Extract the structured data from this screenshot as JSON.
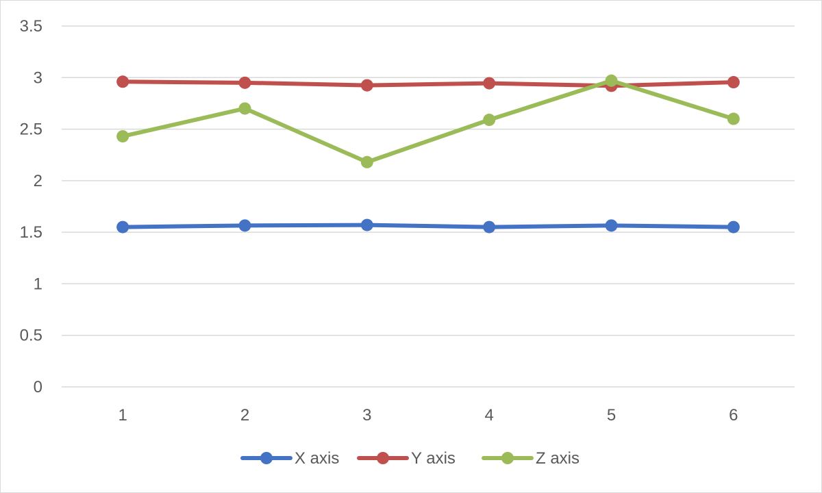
{
  "chart_data": {
    "type": "line",
    "title": "",
    "xlabel": "",
    "ylabel": "",
    "categories": [
      "1",
      "2",
      "3",
      "4",
      "5",
      "6"
    ],
    "ylim": [
      0,
      3.5
    ],
    "yticks": [
      "0",
      "0.5",
      "1",
      "1.5",
      "2",
      "2.5",
      "3",
      "3.5"
    ],
    "grid": "horizontal",
    "legend_position": "bottom",
    "series": [
      {
        "name": "X axis",
        "color": "#4472c4",
        "values": [
          1.55,
          1.565,
          1.57,
          1.55,
          1.565,
          1.55
        ]
      },
      {
        "name": "Y axis",
        "color": "#c0504d",
        "values": [
          2.96,
          2.95,
          2.925,
          2.945,
          2.92,
          2.955
        ]
      },
      {
        "name": "Z axis",
        "color": "#9bbb59",
        "values": [
          2.43,
          2.7,
          2.18,
          2.59,
          2.97,
          2.6
        ]
      }
    ]
  }
}
